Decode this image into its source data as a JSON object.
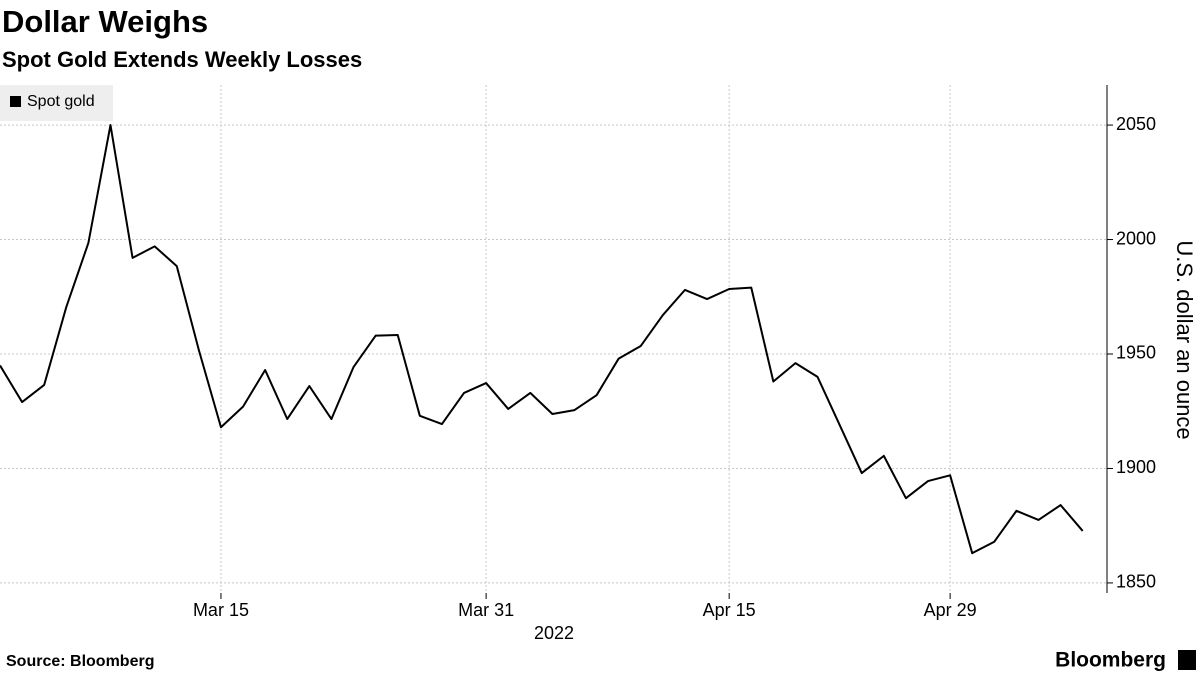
{
  "chart_data": {
    "type": "line",
    "title": "Dollar Weighs",
    "subtitle": "Spot Gold Extends Weekly Losses",
    "xlabel": "2022",
    "ylabel": "U.S. dollar an ounce",
    "source": "Source: Bloomberg",
    "brand": "Bloomberg",
    "categories": [
      null,
      null,
      null,
      null,
      null,
      null,
      null,
      null,
      null,
      null,
      "Mar 15",
      null,
      null,
      null,
      null,
      null,
      null,
      null,
      null,
      null,
      null,
      null,
      "Mar 31",
      null,
      null,
      null,
      null,
      null,
      null,
      null,
      null,
      null,
      null,
      "Apr 15",
      null,
      null,
      null,
      null,
      null,
      null,
      null,
      null,
      null,
      "Apr 29",
      null,
      null,
      null,
      null,
      null,
      null
    ],
    "series": [
      {
        "name": "Spot gold",
        "color": "#000000",
        "values": [
          1945,
          1929,
          1936.5,
          1970.5,
          1998.5,
          2050,
          1992,
          1997,
          1988.4,
          1951.7,
          1918,
          1927,
          1943,
          1921.6,
          1936,
          1921.6,
          1944.3,
          1958,
          1958.3,
          1923,
          1919.4,
          1933,
          1937.3,
          1926,
          1933,
          1923.8,
          1925.5,
          1932,
          1948,
          1953.5,
          1967,
          1978,
          1974,
          1978.4,
          1979,
          1938,
          1946,
          1940,
          1919,
          1898,
          1905.5,
          1887,
          1894.5,
          1897,
          1863,
          1868,
          1881.5,
          1877.5,
          1884,
          1872.7
        ]
      }
    ],
    "ylim": [
      1845.6,
      2067.5
    ],
    "yticks": [
      1850,
      1900,
      1950,
      2000,
      2050
    ],
    "grid": true,
    "legend": "top-left"
  }
}
